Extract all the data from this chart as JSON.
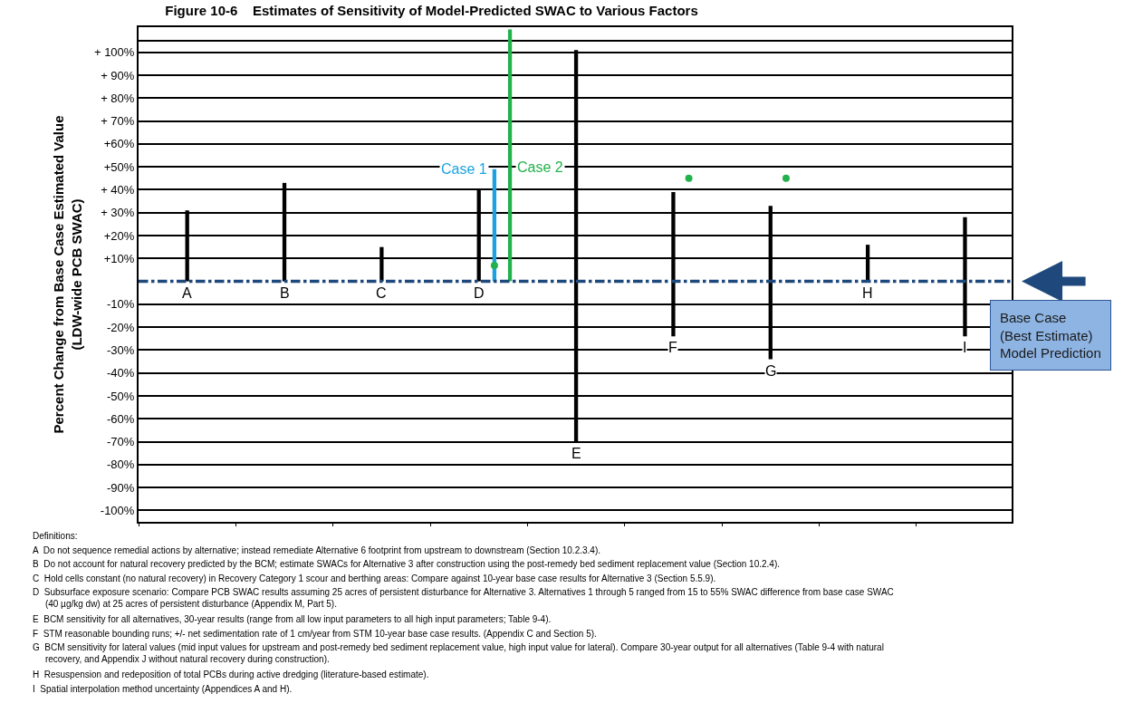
{
  "chart_data": {
    "type": "bar",
    "title": "Figure 10-6    Estimates of Sensitivity of Model-Predicted SWAC to Various Factors",
    "ylabel": "Percent Change from Base Case Estimated Value\n(LDW-wide PCB SWAC)",
    "categories": [
      null,
      null,
      null,
      null,
      null,
      null,
      null,
      null,
      null
    ],
    "ylim": [
      -105,
      111
    ],
    "yticks": [
      {
        "value": 100,
        "label": "+ 100%"
      },
      {
        "value": 90,
        "label": "+ 90%"
      },
      {
        "value": 80,
        "label": "+ 80%"
      },
      {
        "value": 70,
        "label": "+ 70%"
      },
      {
        "value": 60,
        "label": "+60%"
      },
      {
        "value": 50,
        "label": "+50%"
      },
      {
        "value": 40,
        "label": "+ 40%"
      },
      {
        "value": 30,
        "label": "+ 30%"
      },
      {
        "value": 20,
        "label": "+20%"
      },
      {
        "value": 10,
        "label": "+10%"
      },
      {
        "value": -10,
        "label": "-10%"
      },
      {
        "value": -20,
        "label": "-20%"
      },
      {
        "value": -30,
        "label": "-30%"
      },
      {
        "value": -40,
        "label": "-40%"
      },
      {
        "value": -50,
        "label": "-50%"
      },
      {
        "value": -60,
        "label": "-60%"
      },
      {
        "value": -70,
        "label": "-70%"
      },
      {
        "value": -80,
        "label": "-80%"
      },
      {
        "value": -90,
        "label": "-90%"
      },
      {
        "value": -100,
        "label": "-100%"
      },
      {
        "value": 105,
        "label": null
      }
    ],
    "grid": "y",
    "tick_labels": "y",
    "legend": false,
    "series": [
      {
        "color": "#000000",
        "base": [
          0,
          0,
          0,
          0,
          -70,
          -24,
          -34,
          0,
          -24
        ],
        "values": [
          31,
          43,
          15,
          40,
          171,
          63,
          67,
          16,
          52
        ],
        "value_labels": [
          "A",
          "B",
          "C",
          "D",
          "E",
          "F",
          "G",
          "H",
          "I"
        ]
      },
      {
        "type": "bar",
        "name": "Case 1",
        "color": "#1aa3e0",
        "base": [
          null,
          null,
          null,
          0,
          null,
          null,
          null,
          null,
          null
        ],
        "values": [
          null,
          null,
          null,
          49,
          null,
          null,
          null,
          null,
          null
        ]
      },
      {
        "type": "bar",
        "name": "Case 2",
        "color": "#22b14c",
        "base": [
          null,
          null,
          null,
          0,
          null,
          null,
          null,
          null,
          null
        ],
        "values": [
          null,
          null,
          null,
          110,
          null,
          null,
          null,
          null,
          null
        ]
      },
      {
        "type": "scatter",
        "color": "#22b14c",
        "marker": "circle",
        "values": [
          null,
          null,
          null,
          7,
          null,
          45,
          45,
          null,
          null
        ]
      }
    ],
    "ref_lines": [
      {
        "axis": "y",
        "value": 0,
        "label": "Base Case\n(Best Estimate)\nModel Prediction",
        "color": "#1f497d",
        "line_style": "dashdot"
      }
    ],
    "annotations": [
      "Definitions:",
      "A  Do not sequence remedial actions by alternative; instead remediate Alternative 6 footprint from upstream to downstream (Section 10.2.3.4).",
      "B  Do not account for natural recovery predicted by the BCM; estimate SWACs for Alternative 3 after construction using the post-remedy bed sediment replacement value (Section 10.2.4).",
      "C  Hold cells constant (no natural recovery) in Recovery Category 1 scour and berthing areas: Compare against 10-year base case results for Alternative 3 (Section 5.5.9).",
      "D  Subsurface exposure scenario: Compare PCB SWAC results assuming 25 acres of persistent disturbance for Alternative 3. Alternatives 1 through 5 ranged from 15 to 55% SWAC difference from base case SWAC\n     (40 µg/kg dw) at 25 acres of persistent disturbance (Appendix M, Part 5).",
      "E  BCM sensitivity for all alternatives, 30-year results (range from all low input parameters to all high input parameters; Table 9-4).",
      "F  STM reasonable bounding runs; +/- net sedimentation rate of 1 cm/year from STM 10-year base case results. (Appendix C and Section 5).",
      "G  BCM sensitivity for lateral values (mid input values for upstream and post-remedy bed sediment replacement value, high input value for lateral). Compare 30-year output for all alternatives (Table 9-4 with natural\n     recovery, and Appendix J without natural recovery during construction).",
      "H  Resuspension and redeposition of total PCBs during active dredging (literature-based estimate).",
      "I  Spatial interpolation method uncertainty (Appendices A and H)."
    ]
  }
}
